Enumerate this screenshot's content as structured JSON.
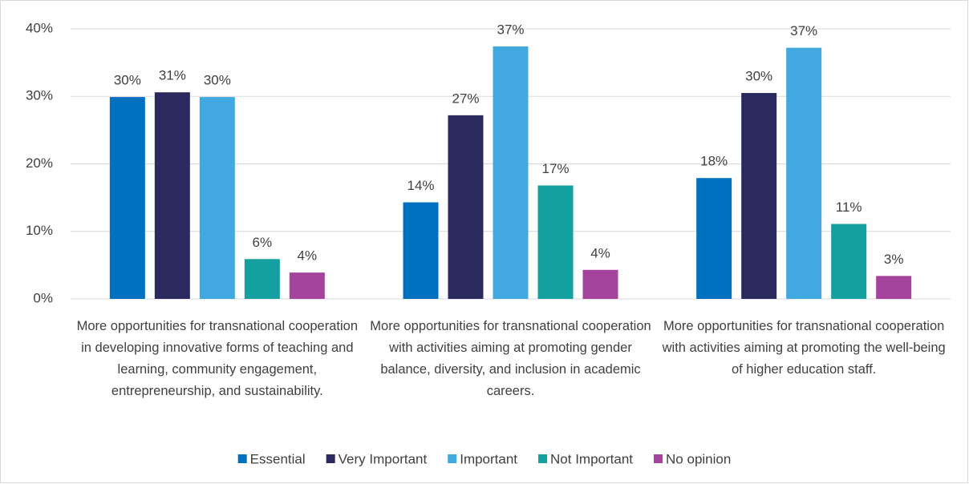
{
  "chart_data": {
    "type": "bar",
    "categories": [
      "More opportunities for transnational cooperation in developing innovative forms of teaching and learning, community engagement, entrepreneurship, and sustainability.",
      "More opportunities for transnational cooperation with activities aiming at promoting gender balance, diversity, and inclusion in academic careers.",
      "More opportunities for transnational cooperation with activities aiming at promoting the well-being of higher education staff."
    ],
    "series": [
      {
        "name": "Essential",
        "color": "#0070c0",
        "values": [
          29.9,
          14.3,
          17.9
        ],
        "value_labels": [
          "30%",
          "14%",
          "18%"
        ]
      },
      {
        "name": "Very Important",
        "color": "#2b2a5f",
        "values": [
          30.6,
          27.2,
          30.5
        ],
        "value_labels": [
          "31%",
          "27%",
          "30%"
        ]
      },
      {
        "name": "Important",
        "color": "#41a8e0",
        "values": [
          29.9,
          37.4,
          37.2
        ],
        "value_labels": [
          "30%",
          "37%",
          "37%"
        ]
      },
      {
        "name": "Not Important",
        "color": "#13a09e",
        "values": [
          5.9,
          16.8,
          11.1
        ],
        "value_labels": [
          "6%",
          "17%",
          "11%"
        ]
      },
      {
        "name": "No opinion",
        "color": "#a5449c",
        "values": [
          3.9,
          4.3,
          3.4
        ],
        "value_labels": [
          "4%",
          "4%",
          "3%"
        ]
      }
    ],
    "ylim": [
      0,
      40
    ],
    "yticks": [
      {
        "value": 0,
        "label": "0%"
      },
      {
        "value": 10,
        "label": "10%"
      },
      {
        "value": 20,
        "label": "20%"
      },
      {
        "value": 30,
        "label": "30%"
      },
      {
        "value": 40,
        "label": "40%"
      }
    ],
    "grid": true,
    "legend": "bottom"
  }
}
